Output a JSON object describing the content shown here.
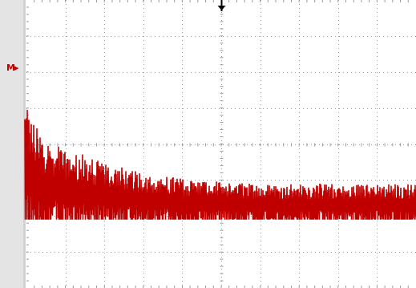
{
  "display": {
    "background_color": "#ffffff",
    "grid_color": "#9a9a9a",
    "trace_color": "#c00000",
    "trigger_marker_color": "#000000",
    "left_strip_color": "#e4e4e4"
  },
  "channel_marker": {
    "label": "M",
    "icon": "math-channel-arrow-icon",
    "color": "#c00000"
  },
  "trigger_marker": {
    "icon": "trigger-position-arrow-icon"
  },
  "grid": {
    "major_divisions_x": 10,
    "major_divisions_y": 8,
    "minor_ticks_per_division": 5
  },
  "chart_data": {
    "type": "line",
    "title": "",
    "xlabel": "",
    "ylabel": "",
    "xlim": [
      0,
      10
    ],
    "ylim": [
      0,
      8
    ],
    "grid": true,
    "series": [
      {
        "envelope_x": [
          0.0,
          0.1,
          0.3,
          0.6,
          1.0,
          1.5,
          2.0,
          2.5,
          3.0,
          3.5,
          4.0,
          4.5,
          5.0,
          6.0,
          7.0,
          8.0,
          9.0,
          10.0
        ],
        "envelope_top": [
          5.2,
          4.8,
          4.4,
          4.1,
          3.9,
          3.7,
          3.5,
          3.35,
          3.25,
          3.15,
          3.05,
          3.0,
          2.95,
          2.9,
          2.9,
          2.9,
          2.9,
          2.9
        ],
        "baseline": 1.9
      }
    ]
  }
}
